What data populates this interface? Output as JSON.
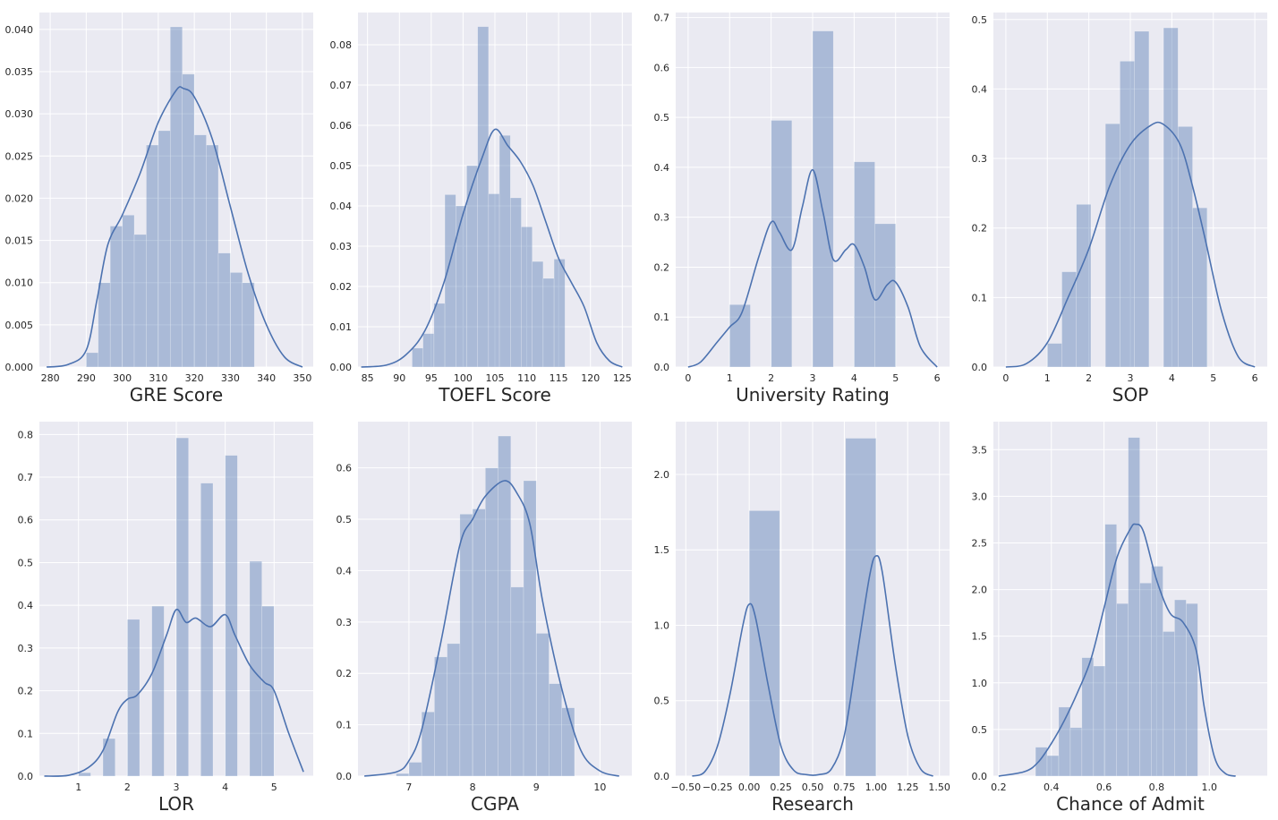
{
  "colors": {
    "panel_bg": "#eaeaf2",
    "grid": "#ffffff",
    "bar": "#4c72b0",
    "bar_opacity": 0.4,
    "kde": "#4c72b0",
    "tick_text": "#262626"
  },
  "chart_data": [
    {
      "type": "bar",
      "xlabel": "GRE Score",
      "xlim": [
        277,
        353
      ],
      "ylim": [
        0,
        0.042
      ],
      "xticks": [
        280,
        290,
        300,
        310,
        320,
        330,
        340,
        350
      ],
      "xtick_labels": [
        "280",
        "290",
        "300",
        "310",
        "320",
        "330",
        "340",
        "350"
      ],
      "yticks": [
        0,
        0.005,
        0.01,
        0.015,
        0.02,
        0.025,
        0.03,
        0.035,
        0.04
      ],
      "ytick_labels": [
        "0.000",
        "0.005",
        "0.010",
        "0.015",
        "0.020",
        "0.025",
        "0.030",
        "0.035",
        "0.040"
      ],
      "bins": [
        [
          290,
          293.33,
          0.0017
        ],
        [
          293.33,
          296.67,
          0.01
        ],
        [
          296.67,
          300,
          0.0167
        ],
        [
          300,
          303.33,
          0.018
        ],
        [
          303.33,
          306.67,
          0.0157
        ],
        [
          306.67,
          310,
          0.0263
        ],
        [
          310,
          313.33,
          0.028
        ],
        [
          313.33,
          316.67,
          0.0403
        ],
        [
          316.67,
          320,
          0.0347
        ],
        [
          320,
          323.33,
          0.0275
        ],
        [
          323.33,
          326.67,
          0.0263
        ],
        [
          326.67,
          330,
          0.0135
        ],
        [
          330,
          333.33,
          0.0112
        ],
        [
          333.33,
          336.67,
          0.01
        ]
      ],
      "kde": [
        [
          279,
          0
        ],
        [
          285,
          0.0003
        ],
        [
          290,
          0.002
        ],
        [
          293,
          0.008
        ],
        [
          296,
          0.0145
        ],
        [
          300,
          0.018
        ],
        [
          305,
          0.023
        ],
        [
          310,
          0.029
        ],
        [
          315,
          0.0328
        ],
        [
          317,
          0.033
        ],
        [
          320,
          0.032
        ],
        [
          325,
          0.027
        ],
        [
          330,
          0.019
        ],
        [
          335,
          0.011
        ],
        [
          340,
          0.005
        ],
        [
          345,
          0.0012
        ],
        [
          350,
          0
        ]
      ]
    },
    {
      "type": "bar",
      "xlabel": "TOEFL Score",
      "xlim": [
        83.5,
        126.5
      ],
      "ylim": [
        0,
        0.088
      ],
      "xticks": [
        85,
        90,
        95,
        100,
        105,
        110,
        115,
        120,
        125
      ],
      "xtick_labels": [
        "85",
        "90",
        "95",
        "100",
        "105",
        "110",
        "115",
        "120",
        "125"
      ],
      "yticks": [
        0,
        0.01,
        0.02,
        0.03,
        0.04,
        0.05,
        0.06,
        0.07,
        0.08
      ],
      "ytick_labels": [
        "0.00",
        "0.01",
        "0.02",
        "0.03",
        "0.04",
        "0.05",
        "0.06",
        "0.07",
        "0.08"
      ],
      "bins": [
        [
          92,
          93.71,
          0.0047
        ],
        [
          93.71,
          95.43,
          0.0083
        ],
        [
          95.43,
          97.14,
          0.0158
        ],
        [
          97.14,
          98.86,
          0.0428
        ],
        [
          98.86,
          100.57,
          0.04
        ],
        [
          100.57,
          102.29,
          0.05
        ],
        [
          102.29,
          104,
          0.0845
        ],
        [
          104,
          105.71,
          0.043
        ],
        [
          105.71,
          107.43,
          0.0575
        ],
        [
          107.43,
          109.14,
          0.042
        ],
        [
          109.14,
          110.86,
          0.0348
        ],
        [
          110.86,
          112.57,
          0.0262
        ],
        [
          112.57,
          114.29,
          0.022
        ],
        [
          114.29,
          116,
          0.0268
        ]
      ],
      "kde": [
        [
          84,
          0
        ],
        [
          88,
          0.0005
        ],
        [
          91,
          0.003
        ],
        [
          94,
          0.009
        ],
        [
          97,
          0.021
        ],
        [
          100,
          0.038
        ],
        [
          103,
          0.052
        ],
        [
          105,
          0.059
        ],
        [
          107,
          0.055
        ],
        [
          109,
          0.051
        ],
        [
          111,
          0.045
        ],
        [
          113,
          0.036
        ],
        [
          115,
          0.027
        ],
        [
          117,
          0.021
        ],
        [
          119,
          0.015
        ],
        [
          121,
          0.006
        ],
        [
          123,
          0.0015
        ],
        [
          125,
          0
        ]
      ]
    },
    {
      "type": "bar",
      "xlabel": "University Rating",
      "xlim": [
        -0.3,
        6.3
      ],
      "ylim": [
        0,
        0.71
      ],
      "xticks": [
        0,
        1,
        2,
        3,
        4,
        5,
        6
      ],
      "xtick_labels": [
        "0",
        "1",
        "2",
        "3",
        "4",
        "5",
        "6"
      ],
      "yticks": [
        0,
        0.1,
        0.2,
        0.3,
        0.4,
        0.5,
        0.6,
        0.7
      ],
      "ytick_labels": [
        "0.0",
        "0.1",
        "0.2",
        "0.3",
        "0.4",
        "0.5",
        "0.6",
        "0.7"
      ],
      "bins": [
        [
          1,
          1.5,
          0.125
        ],
        [
          2,
          2.5,
          0.494
        ],
        [
          3,
          3.5,
          0.673
        ],
        [
          4,
          4.5,
          0.411
        ],
        [
          4.5,
          5,
          0.287
        ]
      ],
      "kde": [
        [
          0,
          0
        ],
        [
          0.3,
          0.01
        ],
        [
          0.7,
          0.05
        ],
        [
          1,
          0.08
        ],
        [
          1.3,
          0.11
        ],
        [
          1.7,
          0.22
        ],
        [
          2,
          0.29
        ],
        [
          2.2,
          0.27
        ],
        [
          2.5,
          0.235
        ],
        [
          2.75,
          0.32
        ],
        [
          3,
          0.395
        ],
        [
          3.25,
          0.31
        ],
        [
          3.5,
          0.215
        ],
        [
          3.8,
          0.235
        ],
        [
          4,
          0.245
        ],
        [
          4.25,
          0.2
        ],
        [
          4.5,
          0.135
        ],
        [
          4.8,
          0.165
        ],
        [
          5,
          0.17
        ],
        [
          5.3,
          0.12
        ],
        [
          5.6,
          0.04
        ],
        [
          6,
          0
        ]
      ]
    },
    {
      "type": "bar",
      "xlabel": "SOP",
      "xlim": [
        -0.3,
        6.3
      ],
      "ylim": [
        0,
        0.51
      ],
      "xticks": [
        0,
        1,
        2,
        3,
        4,
        5,
        6
      ],
      "xtick_labels": [
        "0",
        "1",
        "2",
        "3",
        "4",
        "5",
        "6"
      ],
      "yticks": [
        0,
        0.1,
        0.2,
        0.3,
        0.4,
        0.5
      ],
      "ytick_labels": [
        "0.0",
        "0.1",
        "0.2",
        "0.3",
        "0.4",
        "0.5"
      ],
      "bins": [
        [
          1,
          1.35,
          0.034
        ],
        [
          1.35,
          1.7,
          0.137
        ],
        [
          1.7,
          2.05,
          0.234
        ],
        [
          2.4,
          2.75,
          0.35
        ],
        [
          2.75,
          3.1,
          0.44
        ],
        [
          3.1,
          3.45,
          0.483
        ],
        [
          3.8,
          4.15,
          0.488
        ],
        [
          4.15,
          4.5,
          0.346
        ],
        [
          4.5,
          4.85,
          0.229
        ]
      ],
      "kde": [
        [
          0,
          0
        ],
        [
          0.5,
          0.005
        ],
        [
          1,
          0.035
        ],
        [
          1.5,
          0.1
        ],
        [
          2,
          0.17
        ],
        [
          2.5,
          0.26
        ],
        [
          3,
          0.32
        ],
        [
          3.5,
          0.348
        ],
        [
          3.8,
          0.349
        ],
        [
          4.2,
          0.32
        ],
        [
          4.5,
          0.26
        ],
        [
          4.8,
          0.185
        ],
        [
          5.2,
          0.08
        ],
        [
          5.6,
          0.015
        ],
        [
          6,
          0
        ]
      ]
    },
    {
      "type": "bar",
      "xlabel": "LOR",
      "xlim": [
        0.2,
        5.8
      ],
      "ylim": [
        0,
        0.83
      ],
      "xticks": [
        1,
        2,
        3,
        4,
        5
      ],
      "xtick_labels": [
        "1",
        "2",
        "3",
        "4",
        "5"
      ],
      "yticks": [
        0,
        0.1,
        0.2,
        0.3,
        0.4,
        0.5,
        0.6,
        0.7,
        0.8
      ],
      "ytick_labels": [
        "0.0",
        "0.1",
        "0.2",
        "0.3",
        "0.4",
        "0.5",
        "0.6",
        "0.7",
        "0.8"
      ],
      "bins": [
        [
          1,
          1.25,
          0.008
        ],
        [
          1.5,
          1.75,
          0.088
        ],
        [
          2,
          2.25,
          0.367
        ],
        [
          2.5,
          2.75,
          0.398
        ],
        [
          3,
          3.25,
          0.792
        ],
        [
          3.5,
          3.75,
          0.686
        ],
        [
          4,
          4.25,
          0.751
        ],
        [
          4.5,
          4.75,
          0.503
        ],
        [
          4.75,
          5,
          0.398
        ]
      ],
      "kde": [
        [
          0.3,
          0
        ],
        [
          0.8,
          0.002
        ],
        [
          1.2,
          0.02
        ],
        [
          1.5,
          0.06
        ],
        [
          1.8,
          0.15
        ],
        [
          2,
          0.18
        ],
        [
          2.2,
          0.19
        ],
        [
          2.5,
          0.24
        ],
        [
          2.8,
          0.33
        ],
        [
          3,
          0.39
        ],
        [
          3.2,
          0.36
        ],
        [
          3.4,
          0.37
        ],
        [
          3.7,
          0.35
        ],
        [
          4,
          0.378
        ],
        [
          4.2,
          0.33
        ],
        [
          4.5,
          0.26
        ],
        [
          4.8,
          0.22
        ],
        [
          5,
          0.2
        ],
        [
          5.3,
          0.1
        ],
        [
          5.6,
          0.01
        ]
      ]
    },
    {
      "type": "bar",
      "xlabel": "CGPA",
      "xlim": [
        6.2,
        10.5
      ],
      "ylim": [
        0,
        0.69
      ],
      "xticks": [
        7,
        8,
        9,
        10
      ],
      "xtick_labels": [
        "7",
        "8",
        "9",
        "10"
      ],
      "yticks": [
        0,
        0.1,
        0.2,
        0.3,
        0.4,
        0.5,
        0.6
      ],
      "ytick_labels": [
        "0.0",
        "0.1",
        "0.2",
        "0.3",
        "0.4",
        "0.5",
        "0.6"
      ],
      "bins": [
        [
          6.8,
          7.0,
          0.005
        ],
        [
          7.0,
          7.2,
          0.027
        ],
        [
          7.2,
          7.4,
          0.125
        ],
        [
          7.4,
          7.6,
          0.232
        ],
        [
          7.6,
          7.8,
          0.258
        ],
        [
          7.8,
          8.0,
          0.51
        ],
        [
          8.0,
          8.2,
          0.52
        ],
        [
          8.2,
          8.4,
          0.6
        ],
        [
          8.4,
          8.6,
          0.662
        ],
        [
          8.6,
          8.8,
          0.368
        ],
        [
          8.8,
          9.0,
          0.575
        ],
        [
          9.0,
          9.2,
          0.278
        ],
        [
          9.2,
          9.4,
          0.18
        ],
        [
          9.4,
          9.6,
          0.133
        ]
      ],
      "kde": [
        [
          6.3,
          0
        ],
        [
          6.8,
          0.008
        ],
        [
          7.0,
          0.03
        ],
        [
          7.2,
          0.09
        ],
        [
          7.5,
          0.26
        ],
        [
          7.8,
          0.45
        ],
        [
          8.0,
          0.5
        ],
        [
          8.2,
          0.545
        ],
        [
          8.5,
          0.575
        ],
        [
          8.7,
          0.55
        ],
        [
          8.9,
          0.49
        ],
        [
          9.1,
          0.34
        ],
        [
          9.4,
          0.17
        ],
        [
          9.7,
          0.05
        ],
        [
          10.0,
          0.01
        ],
        [
          10.3,
          0
        ]
      ]
    },
    {
      "type": "bar",
      "xlabel": "Research",
      "xlim": [
        -0.58,
        1.58
      ],
      "ylim": [
        0,
        2.35
      ],
      "xticks": [
        -0.5,
        -0.25,
        0,
        0.25,
        0.5,
        0.75,
        1,
        1.25,
        1.5
      ],
      "xtick_labels": [
        "−0.50",
        "−0.25",
        "0.00",
        "0.25",
        "0.50",
        "0.75",
        "1.00",
        "1.25",
        "1.50"
      ],
      "yticks": [
        0,
        0.5,
        1.0,
        1.5,
        2.0
      ],
      "ytick_labels": [
        "0.0",
        "0.5",
        "1.0",
        "1.5",
        "2.0"
      ],
      "bins": [
        [
          0,
          0.24,
          1.76
        ],
        [
          0.76,
          1.0,
          2.24
        ]
      ],
      "kde": [
        [
          -0.45,
          0
        ],
        [
          -0.35,
          0.03
        ],
        [
          -0.25,
          0.2
        ],
        [
          -0.15,
          0.55
        ],
        [
          -0.05,
          1.0
        ],
        [
          0,
          1.14
        ],
        [
          0.05,
          1.05
        ],
        [
          0.15,
          0.6
        ],
        [
          0.25,
          0.2
        ],
        [
          0.35,
          0.04
        ],
        [
          0.45,
          0.01
        ],
        [
          0.55,
          0.01
        ],
        [
          0.65,
          0.05
        ],
        [
          0.75,
          0.27
        ],
        [
          0.85,
          0.8
        ],
        [
          0.95,
          1.33
        ],
        [
          1.0,
          1.46
        ],
        [
          1.05,
          1.35
        ],
        [
          1.15,
          0.75
        ],
        [
          1.25,
          0.27
        ],
        [
          1.35,
          0.05
        ],
        [
          1.45,
          0
        ]
      ]
    },
    {
      "type": "bar",
      "xlabel": "Chance of Admit",
      "xlim": [
        0.18,
        1.22
      ],
      "ylim": [
        0,
        3.8
      ],
      "xticks": [
        0.2,
        0.4,
        0.6,
        0.8,
        1.0
      ],
      "xtick_labels": [
        "0.2",
        "0.4",
        "0.6",
        "0.8",
        "1.0"
      ],
      "yticks": [
        0,
        0.5,
        1.0,
        1.5,
        2.0,
        2.5,
        3.0,
        3.5
      ],
      "ytick_labels": [
        "0.0",
        "0.5",
        "1.0",
        "1.5",
        "2.0",
        "2.5",
        "3.0",
        "3.5"
      ],
      "bins": [
        [
          0.34,
          0.384,
          0.31
        ],
        [
          0.384,
          0.428,
          0.22
        ],
        [
          0.428,
          0.472,
          0.74
        ],
        [
          0.472,
          0.516,
          0.52
        ],
        [
          0.516,
          0.56,
          1.27
        ],
        [
          0.56,
          0.604,
          1.18
        ],
        [
          0.604,
          0.648,
          2.7
        ],
        [
          0.648,
          0.692,
          1.85
        ],
        [
          0.692,
          0.736,
          3.63
        ],
        [
          0.736,
          0.78,
          2.07
        ],
        [
          0.78,
          0.824,
          2.25
        ],
        [
          0.824,
          0.868,
          1.55
        ],
        [
          0.868,
          0.912,
          1.89
        ],
        [
          0.912,
          0.956,
          1.85
        ]
      ],
      "kde": [
        [
          0.2,
          0
        ],
        [
          0.3,
          0.05
        ],
        [
          0.35,
          0.15
        ],
        [
          0.4,
          0.35
        ],
        [
          0.45,
          0.6
        ],
        [
          0.5,
          0.9
        ],
        [
          0.55,
          1.25
        ],
        [
          0.6,
          1.8
        ],
        [
          0.65,
          2.35
        ],
        [
          0.7,
          2.65
        ],
        [
          0.72,
          2.7
        ],
        [
          0.75,
          2.62
        ],
        [
          0.8,
          2.1
        ],
        [
          0.85,
          1.75
        ],
        [
          0.9,
          1.65
        ],
        [
          0.95,
          1.35
        ],
        [
          0.98,
          0.75
        ],
        [
          1.02,
          0.2
        ],
        [
          1.06,
          0.03
        ],
        [
          1.1,
          0
        ]
      ]
    }
  ]
}
